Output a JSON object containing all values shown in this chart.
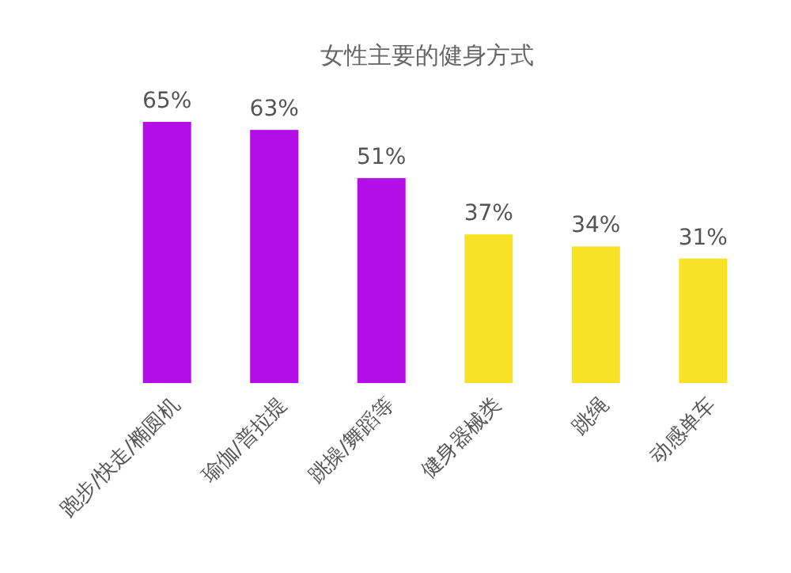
{
  "chart_data": {
    "type": "bar",
    "title": "女性主要的健身方式",
    "categories": [
      "跑步/快走/椭圆机",
      "瑜伽/普拉提",
      "跳操/舞蹈等",
      "健身器械类",
      "跳绳",
      "动感单车"
    ],
    "values": [
      65,
      63,
      51,
      37,
      34,
      31
    ],
    "colors": [
      "#b40ee8",
      "#b40ee8",
      "#b40ee8",
      "#f7e225",
      "#f7e225",
      "#f7e225"
    ],
    "value_labels": [
      "65%",
      "63%",
      "51%",
      "37%",
      "34%",
      "31%"
    ],
    "ylim": [
      0,
      65
    ]
  }
}
